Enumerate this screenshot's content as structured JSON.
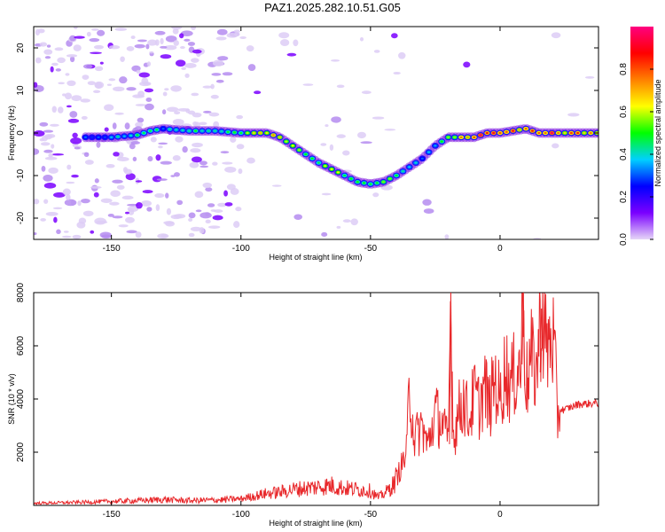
{
  "title": "PAZ1.2025.282.10.51.G05",
  "chart_data": [
    {
      "type": "heatmap",
      "title": "PAZ1.2025.282.10.51.G05",
      "xlabel": "Height of straight line (km)",
      "ylabel": "Frequency (Hz)",
      "xlim": [
        -180,
        38
      ],
      "ylim": [
        -25,
        25
      ],
      "xticks": [
        -150,
        -100,
        -50,
        0
      ],
      "yticks": [
        -20,
        -10,
        0,
        10,
        20
      ],
      "colorbar": {
        "label": "Normalized spectral amplitude",
        "range": [
          0,
          1
        ],
        "ticks": [
          "0.0",
          "0.2",
          "0.4",
          "0.6",
          "0.8"
        ],
        "colormap": [
          "#e6d6f7",
          "#7a00ff",
          "#0000ff",
          "#00d0ff",
          "#00ff00",
          "#ffff00",
          "#ff8000",
          "#ff0000",
          "#ff0080"
        ]
      },
      "ridge": {
        "x": [
          -160,
          -150,
          -140,
          -135,
          -130,
          -120,
          -110,
          -100,
          -95,
          -90,
          -85,
          -80,
          -75,
          -70,
          -65,
          -60,
          -55,
          -50,
          -45,
          -40,
          -35,
          -30,
          -25,
          -20,
          -15,
          -10,
          -5,
          0,
          5,
          10,
          15,
          20,
          25,
          30,
          38
        ],
        "y": [
          -1,
          -1,
          -0.5,
          0.5,
          1,
          0.5,
          0.5,
          0,
          0,
          0,
          -1,
          -3,
          -5,
          -7,
          -8.5,
          -10,
          -11.5,
          -12,
          -11.5,
          -10,
          -8,
          -6,
          -3,
          -1,
          -1,
          -1,
          0,
          0,
          0.5,
          1,
          0,
          0,
          0,
          0,
          0
        ],
        "amp": [
          0.3,
          0.35,
          0.45,
          0.5,
          0.35,
          0.45,
          0.45,
          0.55,
          0.6,
          0.65,
          0.65,
          0.55,
          0.5,
          0.55,
          0.6,
          0.55,
          0.5,
          0.45,
          0.55,
          0.55,
          0.4,
          0.3,
          0.4,
          0.6,
          0.7,
          0.85,
          0.9,
          0.75,
          0.8,
          0.7,
          0.85,
          0.9,
          0.75,
          0.8,
          0.75
        ]
      }
    },
    {
      "type": "line",
      "xlabel": "Height of straight line (km)",
      "ylabel": "SNR (10 * v/v)",
      "xlim": [
        -180,
        38
      ],
      "ylim": [
        0,
        8000
      ],
      "xticks": [
        -150,
        -100,
        -50,
        0
      ],
      "yticks": [
        2000,
        4000,
        6000,
        8000
      ],
      "series": [
        {
          "name": "SNR",
          "color": "#e8282b",
          "x": [
            -180,
            -160,
            -140,
            -130,
            -120,
            -110,
            -100,
            -95,
            -90,
            -85,
            -80,
            -75,
            -70,
            -65,
            -60,
            -55,
            -50,
            -47,
            -44,
            -41,
            -38,
            -36,
            -35,
            -33,
            -30,
            -28,
            -25,
            -22,
            -20,
            -19,
            -18,
            -16,
            -14,
            -12,
            -10,
            -8,
            -6,
            -4,
            -2,
            0,
            2,
            4,
            6,
            8,
            9,
            10,
            12,
            14,
            16,
            18,
            20,
            21,
            22,
            23,
            25,
            30,
            38
          ],
          "y": [
            80,
            120,
            180,
            220,
            180,
            200,
            250,
            350,
            450,
            500,
            600,
            650,
            700,
            750,
            650,
            600,
            550,
            300,
            500,
            800,
            1500,
            2000,
            4600,
            2500,
            3000,
            2200,
            3500,
            3000,
            2300,
            8000,
            2500,
            3500,
            4000,
            3200,
            4200,
            3700,
            4500,
            3700,
            4800,
            3900,
            5200,
            4500,
            5000,
            5300,
            8000,
            4500,
            5500,
            5000,
            7400,
            5800,
            6400,
            5900,
            3300,
            3600,
            3600,
            3800,
            3850
          ]
        }
      ]
    }
  ]
}
